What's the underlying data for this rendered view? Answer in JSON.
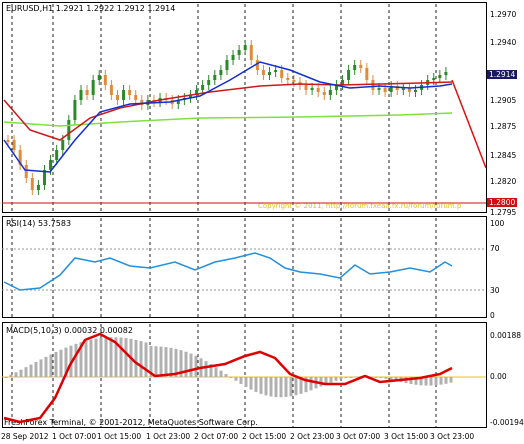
{
  "price_pane": {
    "header": "EURUSD,H1  1.2921 1.2922 1.2912 1.2914",
    "axis_labels": [
      "1.2970",
      "1.2940",
      "1.2914",
      "1.2905",
      "1.2875",
      "1.2845",
      "1.2820",
      "1.2800",
      "1.2795"
    ],
    "current_price": "1.2914",
    "line_price": "1.2800",
    "copyright": "Copyright © 2011, http://forum.fxeaa.fx.ru/forum/forum.p",
    "colors": {
      "bull": "#2a8a2a",
      "bear": "#e08a3a",
      "fast_ma": "#1030d0",
      "slow_ma": "#d01818",
      "long_ma": "#80e040",
      "extrap": "#dd1111",
      "price_line": "#cc1111"
    }
  },
  "rsi_pane": {
    "header": "RSI(14) 53.7583",
    "axis_labels": [
      "100",
      "70",
      "30",
      "0"
    ],
    "line_color": "#2090e0"
  },
  "macd_pane": {
    "header": "MACD(5,10,3) 0.00032 0.00082",
    "axis_labels": [
      "0.00188",
      "0.00",
      "-0.00194"
    ],
    "histogram_color": "#b0b0b0",
    "signal_color": "#dd0000"
  },
  "footer": {
    "terminal": "FreshForex Terminal, © 2001-2012, MetaQuotes Software Corp."
  },
  "time_axis": [
    "28 Sep 2012",
    "1 Oct 07:00",
    "1 Oct 15:00",
    "1 Oct 23:00",
    "2 Oct 07:00",
    "2 Oct 15:00",
    "2 Oct 23:00",
    "3 Oct 07:00",
    "3 Oct 15:00",
    "3 Oct 23:00"
  ]
}
